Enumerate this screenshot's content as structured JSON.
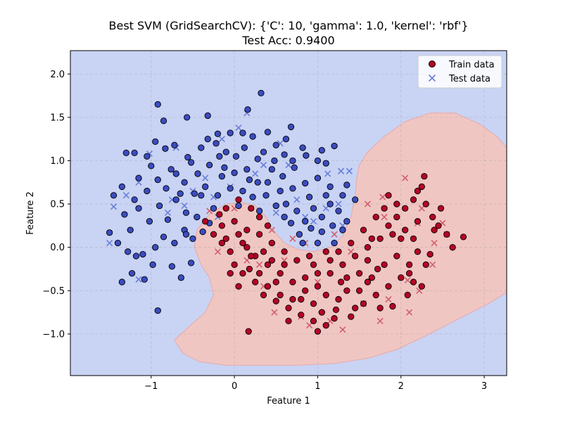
{
  "chart_data": {
    "type": "scatter",
    "title": "Best SVM (GridSearchCV): {'C': 10, 'gamma': 1.0, 'kernel': 'rbf'}",
    "subtitle": "Test Acc: 0.9400",
    "xlabel": "Feature 1",
    "ylabel": "Feature 2",
    "xlim": [
      -1.97,
      3.27
    ],
    "ylim": [
      -1.48,
      2.27
    ],
    "xticks": [
      -1,
      0,
      1,
      2,
      3
    ],
    "yticks": [
      -1.0,
      -0.5,
      0.0,
      0.5,
      1.0,
      1.5,
      2.0
    ],
    "grid": true,
    "legend_position": "top-right",
    "colors": {
      "class0": "#3b4cc0",
      "class1": "#b40426",
      "region0": "#c9d3f4",
      "region1": "#f0c6c3",
      "test0": "#6a7fd8",
      "test1": "#d0606a"
    },
    "series": [
      {
        "name": "Train data",
        "marker": "circle"
      },
      {
        "name": "Test data",
        "marker": "x"
      }
    ],
    "decision_region_class1": [
      [
        -0.72,
        -1.07
      ],
      [
        -0.62,
        -1.22
      ],
      [
        -0.42,
        -1.32
      ],
      [
        -0.1,
        -1.36
      ],
      [
        0.3,
        -1.36
      ],
      [
        0.75,
        -1.36
      ],
      [
        1.2,
        -1.34
      ],
      [
        1.6,
        -1.28
      ],
      [
        1.95,
        -1.18
      ],
      [
        2.3,
        -1.02
      ],
      [
        2.7,
        -0.82
      ],
      [
        3.05,
        -0.65
      ],
      [
        3.27,
        -0.52
      ],
      [
        3.27,
        1.15
      ],
      [
        3.15,
        1.28
      ],
      [
        2.95,
        1.42
      ],
      [
        2.65,
        1.55
      ],
      [
        2.35,
        1.55
      ],
      [
        2.05,
        1.45
      ],
      [
        1.8,
        1.28
      ],
      [
        1.6,
        1.1
      ],
      [
        1.5,
        0.95
      ],
      [
        1.47,
        0.8
      ],
      [
        1.45,
        0.6
      ],
      [
        1.4,
        0.35
      ],
      [
        1.3,
        0.13
      ],
      [
        1.15,
        0.0
      ],
      [
        0.95,
        -0.05
      ],
      [
        0.75,
        -0.02
      ],
      [
        0.6,
        0.05
      ],
      [
        0.48,
        0.18
      ],
      [
        0.38,
        0.35
      ],
      [
        0.25,
        0.48
      ],
      [
        0.08,
        0.52
      ],
      [
        -0.1,
        0.5
      ],
      [
        -0.3,
        0.38
      ],
      [
        -0.45,
        0.2
      ],
      [
        -0.48,
        0.0
      ],
      [
        -0.4,
        -0.2
      ],
      [
        -0.3,
        -0.35
      ],
      [
        -0.25,
        -0.55
      ],
      [
        -0.35,
        -0.75
      ],
      [
        -0.55,
        -0.92
      ]
    ],
    "train_class0": [
      [
        -0.92,
        1.65
      ],
      [
        -0.85,
        1.46
      ],
      [
        -0.57,
        1.5
      ],
      [
        -0.32,
        1.52
      ],
      [
        0.16,
        1.59
      ],
      [
        0.32,
        1.78
      ],
      [
        -0.05,
        1.32
      ],
      [
        0.1,
        1.32
      ],
      [
        0.4,
        1.33
      ],
      [
        0.68,
        1.39
      ],
      [
        -0.2,
        1.31
      ],
      [
        -1.3,
        1.09
      ],
      [
        -1.2,
        1.09
      ],
      [
        -1.0,
        0.94
      ],
      [
        -0.83,
        1.14
      ],
      [
        -0.56,
        1.04
      ],
      [
        -0.4,
        1.15
      ],
      [
        -0.22,
        1.2
      ],
      [
        0.12,
        1.15
      ],
      [
        0.35,
        1.1
      ],
      [
        0.5,
        1.18
      ],
      [
        0.6,
        1.07
      ],
      [
        0.86,
        1.06
      ],
      [
        1.0,
        1.0
      ],
      [
        1.2,
        1.17
      ],
      [
        1.1,
        0.97
      ],
      [
        -1.45,
        0.6
      ],
      [
        -1.35,
        0.7
      ],
      [
        -1.15,
        0.8
      ],
      [
        -1.05,
        0.65
      ],
      [
        -0.92,
        0.78
      ],
      [
        -0.76,
        0.9
      ],
      [
        -0.6,
        0.75
      ],
      [
        -0.44,
        0.85
      ],
      [
        -0.3,
        0.95
      ],
      [
        -0.15,
        0.82
      ],
      [
        0.0,
        0.86
      ],
      [
        0.15,
        0.9
      ],
      [
        0.28,
        0.75
      ],
      [
        0.45,
        0.9
      ],
      [
        0.58,
        0.82
      ],
      [
        0.7,
        0.68
      ],
      [
        0.85,
        0.74
      ],
      [
        1.0,
        0.8
      ],
      [
        1.15,
        0.7
      ],
      [
        1.3,
        0.6
      ],
      [
        -1.5,
        0.17
      ],
      [
        -1.32,
        0.38
      ],
      [
        -1.25,
        0.2
      ],
      [
        -1.15,
        0.45
      ],
      [
        -1.02,
        0.3
      ],
      [
        -0.9,
        0.48
      ],
      [
        -0.8,
        0.32
      ],
      [
        -0.7,
        0.55
      ],
      [
        -0.58,
        0.4
      ],
      [
        -0.48,
        0.62
      ],
      [
        -0.35,
        0.7
      ],
      [
        -0.2,
        0.6
      ],
      [
        -0.05,
        0.68
      ],
      [
        0.1,
        0.65
      ],
      [
        0.22,
        0.58
      ],
      [
        0.38,
        0.6
      ],
      [
        0.5,
        0.48
      ],
      [
        0.62,
        0.5
      ],
      [
        0.75,
        0.42
      ],
      [
        0.85,
        0.3
      ],
      [
        0.95,
        0.45
      ],
      [
        1.05,
        0.35
      ],
      [
        1.15,
        0.5
      ],
      [
        1.25,
        0.42
      ],
      [
        -1.35,
        -0.4
      ],
      [
        -1.23,
        -0.3
      ],
      [
        -1.1,
        -0.08
      ],
      [
        -0.95,
        0.0
      ],
      [
        -0.85,
        0.12
      ],
      [
        -0.72,
        0.05
      ],
      [
        -0.6,
        0.2
      ],
      [
        -0.5,
        0.1
      ],
      [
        -0.38,
        0.18
      ],
      [
        -0.92,
        -0.73
      ],
      [
        -1.08,
        -0.37
      ],
      [
        -1.18,
        -0.1
      ],
      [
        -0.75,
        -0.22
      ],
      [
        -0.64,
        -0.35
      ],
      [
        -0.52,
        -0.18
      ],
      [
        0.68,
        0.28
      ],
      [
        0.78,
        0.15
      ],
      [
        0.92,
        0.22
      ],
      [
        1.05,
        0.18
      ],
      [
        1.18,
        0.25
      ],
      [
        1.3,
        0.2
      ],
      [
        0.6,
        0.35
      ],
      [
        -1.4,
        0.05
      ],
      [
        -1.28,
        -0.05
      ],
      [
        -0.98,
        -0.2
      ],
      [
        -0.3,
        0.28
      ],
      [
        1.35,
        0.3
      ],
      [
        1.0,
        0.05
      ],
      [
        0.82,
        0.05
      ],
      [
        1.45,
        0.55
      ],
      [
        1.35,
        0.72
      ],
      [
        -0.52,
        0.98
      ],
      [
        -0.18,
        1.05
      ],
      [
        0.02,
        1.05
      ],
      [
        0.28,
        1.02
      ],
      [
        0.48,
        1.0
      ],
      [
        0.72,
        0.92
      ],
      [
        0.9,
        0.58
      ],
      [
        0.3,
        0.42
      ],
      [
        -0.72,
        1.18
      ],
      [
        -0.1,
        1.1
      ],
      [
        0.22,
        1.28
      ],
      [
        0.62,
        1.25
      ],
      [
        0.82,
        1.15
      ],
      [
        1.05,
        1.12
      ],
      [
        -1.05,
        1.05
      ],
      [
        -0.65,
        0.62
      ],
      [
        -0.25,
        0.45
      ],
      [
        0.55,
        0.65
      ],
      [
        -0.82,
        0.68
      ],
      [
        -1.2,
        0.55
      ],
      [
        -0.45,
        0.35
      ],
      [
        0.05,
        0.48
      ],
      [
        0.4,
        0.75
      ],
      [
        -0.58,
        0.15
      ],
      [
        1.1,
        0.6
      ],
      [
        1.2,
        0.05
      ],
      [
        -0.12,
        0.92
      ],
      [
        -0.4,
        0.6
      ],
      [
        -0.7,
        0.85
      ],
      [
        0.7,
        1.0
      ],
      [
        -0.95,
        1.22
      ],
      [
        -0.32,
        1.25
      ],
      [
        0.18,
        0.78
      ]
    ],
    "train_class1": [
      [
        0.17,
        -0.97
      ],
      [
        1.0,
        -0.97
      ],
      [
        1.1,
        -0.9
      ],
      [
        0.95,
        -0.85
      ],
      [
        1.22,
        -0.72
      ],
      [
        1.4,
        -0.8
      ],
      [
        1.55,
        -0.65
      ],
      [
        0.65,
        -0.7
      ],
      [
        0.8,
        -0.6
      ],
      [
        0.55,
        -0.55
      ],
      [
        0.4,
        -0.45
      ],
      [
        0.25,
        -0.4
      ],
      [
        0.1,
        -0.3
      ],
      [
        0.0,
        -0.2
      ],
      [
        -0.05,
        -0.05
      ],
      [
        -0.1,
        0.1
      ],
      [
        -0.15,
        0.25
      ],
      [
        -0.1,
        0.45
      ],
      [
        0.05,
        0.55
      ],
      [
        0.2,
        0.45
      ],
      [
        0.3,
        0.35
      ],
      [
        0.15,
        0.2
      ],
      [
        0.1,
        0.05
      ],
      [
        0.25,
        -0.1
      ],
      [
        0.4,
        -0.2
      ],
      [
        0.55,
        -0.3
      ],
      [
        0.7,
        -0.4
      ],
      [
        0.85,
        -0.35
      ],
      [
        1.0,
        -0.45
      ],
      [
        1.15,
        -0.3
      ],
      [
        1.3,
        -0.2
      ],
      [
        1.45,
        -0.1
      ],
      [
        1.6,
        0.0
      ],
      [
        1.75,
        0.1
      ],
      [
        1.85,
        0.25
      ],
      [
        1.95,
        0.35
      ],
      [
        2.05,
        0.45
      ],
      [
        2.15,
        0.55
      ],
      [
        2.25,
        0.7
      ],
      [
        2.28,
        0.82
      ],
      [
        2.2,
        0.65
      ],
      [
        2.38,
        0.35
      ],
      [
        2.48,
        0.45
      ],
      [
        2.62,
        0.0
      ],
      [
        2.75,
        0.12
      ],
      [
        2.2,
        -0.05
      ],
      [
        2.1,
        -0.2
      ],
      [
        2.0,
        -0.35
      ],
      [
        1.85,
        -0.45
      ],
      [
        1.7,
        -0.55
      ],
      [
        1.6,
        -0.4
      ],
      [
        1.5,
        -0.3
      ],
      [
        1.35,
        -0.5
      ],
      [
        1.25,
        -0.6
      ],
      [
        1.1,
        -0.55
      ],
      [
        0.95,
        -0.65
      ],
      [
        0.8,
        -0.78
      ],
      [
        0.65,
        -0.85
      ],
      [
        0.5,
        -0.62
      ],
      [
        0.35,
        -0.55
      ],
      [
        1.85,
        0.6
      ],
      [
        1.95,
        0.5
      ],
      [
        2.05,
        0.2
      ],
      [
        2.15,
        0.1
      ],
      [
        2.35,
        -0.08
      ],
      [
        2.2,
        0.3
      ],
      [
        2.4,
        0.2
      ],
      [
        0.05,
        -0.45
      ],
      [
        -0.15,
        0.05
      ],
      [
        -0.35,
        0.3
      ],
      [
        -0.25,
        0.15
      ],
      [
        0.0,
        0.3
      ],
      [
        1.7,
        0.35
      ],
      [
        1.55,
        0.2
      ],
      [
        1.4,
        0.05
      ],
      [
        1.25,
        -0.05
      ],
      [
        1.15,
        -0.15
      ],
      [
        0.95,
        -0.2
      ],
      [
        0.75,
        -0.15
      ],
      [
        0.6,
        -0.05
      ],
      [
        0.45,
        0.05
      ],
      [
        0.35,
        -0.05
      ],
      [
        1.8,
        -0.2
      ],
      [
        1.95,
        -0.1
      ],
      [
        2.1,
        -0.3
      ],
      [
        1.75,
        -0.7
      ],
      [
        1.9,
        -0.68
      ],
      [
        2.25,
        -0.45
      ],
      [
        1.65,
        -0.35
      ],
      [
        0.3,
        0.15
      ],
      [
        0.18,
        -0.25
      ],
      [
        -0.18,
        0.38
      ],
      [
        0.5,
        -0.4
      ],
      [
        0.7,
        -0.6
      ],
      [
        1.05,
        -0.75
      ],
      [
        1.2,
        -0.82
      ],
      [
        1.5,
        -0.5
      ],
      [
        2.0,
        0.1
      ],
      [
        2.3,
        0.5
      ],
      [
        1.9,
        0.15
      ],
      [
        0.05,
        0.15
      ],
      [
        0.4,
        0.25
      ],
      [
        1.35,
        -0.35
      ],
      [
        0.85,
        -0.5
      ],
      [
        0.6,
        -0.2
      ],
      [
        1.65,
        0.1
      ],
      [
        2.15,
        -0.4
      ],
      [
        1.45,
        -0.7
      ],
      [
        1.0,
        -0.3
      ],
      [
        0.2,
        -0.1
      ],
      [
        -0.05,
        -0.3
      ],
      [
        1.8,
        0.45
      ],
      [
        2.45,
        0.25
      ],
      [
        2.55,
        0.15
      ],
      [
        1.28,
        -0.4
      ],
      [
        0.9,
        -0.1
      ],
      [
        0.15,
        0.0
      ],
      [
        0.45,
        -0.15
      ],
      [
        1.1,
        -0.05
      ],
      [
        1.6,
        -0.15
      ],
      [
        0.3,
        -0.3
      ],
      [
        2.08,
        -0.55
      ],
      [
        1.72,
        -0.25
      ],
      [
        2.3,
        -0.2
      ]
    ],
    "test_class0": [
      [
        -1.5,
        0.05
      ],
      [
        -1.15,
        -0.37
      ],
      [
        -1.45,
        0.47
      ],
      [
        -1.3,
        0.6
      ],
      [
        -1.15,
        0.75
      ],
      [
        -1.02,
        1.08
      ],
      [
        -0.75,
        0.55
      ],
      [
        -0.6,
        0.48
      ],
      [
        -0.5,
        0.65
      ],
      [
        -0.25,
        0.58
      ],
      [
        -0.15,
        1.25
      ],
      [
        0.15,
        1.55
      ],
      [
        0.05,
        1.38
      ],
      [
        -0.05,
        0.7
      ],
      [
        0.35,
        0.95
      ],
      [
        0.65,
        0.95
      ],
      [
        0.75,
        0.55
      ],
      [
        1.12,
        0.85
      ],
      [
        1.28,
        0.88
      ],
      [
        1.38,
        0.88
      ],
      [
        1.1,
        0.45
      ],
      [
        1.25,
        0.5
      ],
      [
        0.85,
        0.35
      ],
      [
        1.3,
        0.25
      ],
      [
        0.95,
        0.3
      ],
      [
        -0.8,
        0.4
      ],
      [
        -0.35,
        0.8
      ],
      [
        -0.2,
        0.35
      ],
      [
        0.5,
        0.4
      ],
      [
        0.25,
        0.85
      ],
      [
        0.55,
        1.2
      ],
      [
        -0.7,
        1.15
      ]
    ],
    "test_class1": [
      [
        -0.3,
        0.42
      ],
      [
        0.0,
        0.45
      ],
      [
        -0.2,
        -0.05
      ],
      [
        0.15,
        -0.15
      ],
      [
        0.35,
        -0.45
      ],
      [
        0.48,
        -0.75
      ],
      [
        0.8,
        -0.8
      ],
      [
        0.9,
        -0.9
      ],
      [
        1.15,
        -0.85
      ],
      [
        1.3,
        -0.95
      ],
      [
        1.55,
        -0.65
      ],
      [
        1.75,
        -0.85
      ],
      [
        1.85,
        -0.6
      ],
      [
        2.1,
        -0.75
      ],
      [
        2.08,
        -0.38
      ],
      [
        2.22,
        -0.5
      ],
      [
        2.38,
        -0.2
      ],
      [
        2.55,
        0.15
      ],
      [
        2.4,
        0.05
      ],
      [
        2.5,
        0.28
      ],
      [
        2.25,
        0.45
      ],
      [
        2.05,
        0.8
      ],
      [
        1.8,
        0.35
      ],
      [
        1.6,
        0.5
      ],
      [
        1.4,
        -0.05
      ],
      [
        1.2,
        0.15
      ],
      [
        0.6,
        -0.15
      ],
      [
        0.7,
        0.1
      ],
      [
        0.85,
        0.05
      ],
      [
        0.45,
        0.2
      ],
      [
        0.3,
        -0.2
      ],
      [
        1.0,
        -0.4
      ],
      [
        1.78,
        0.58
      ],
      [
        2.2,
        0.28
      ]
    ]
  },
  "legend": {
    "train_label": "Train data",
    "test_label": "Test data"
  }
}
